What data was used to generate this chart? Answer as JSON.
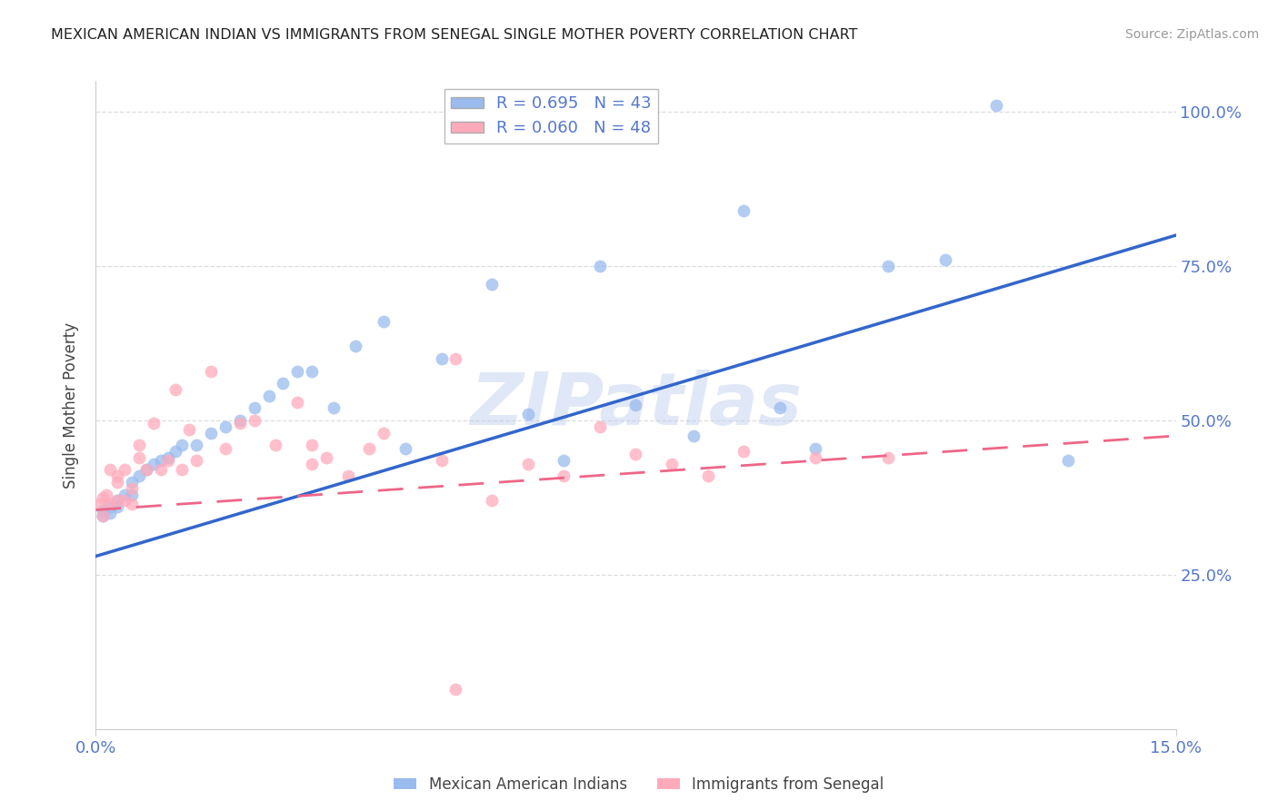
{
  "title": "MEXICAN AMERICAN INDIAN VS IMMIGRANTS FROM SENEGAL SINGLE MOTHER POVERTY CORRELATION CHART",
  "source": "Source: ZipAtlas.com",
  "ylabel_label": "Single Mother Poverty",
  "legend_label1": "Mexican American Indians",
  "legend_label2": "Immigrants from Senegal",
  "R1": 0.695,
  "N1": 43,
  "R2": 0.06,
  "N2": 48,
  "color_blue": "#99BBEE",
  "color_pink": "#FFAABB",
  "color_blue_line": "#3366CC",
  "color_pink_line": "#EE6688",
  "color_axis_text": "#5577CC",
  "color_grid": "#DDDDDD",
  "watermark": "ZIPatlas",
  "watermark_color": "#BBCCEE",
  "xmin": 0.0,
  "xmax": 0.15,
  "ymin": 0.0,
  "ymax": 1.05,
  "yticks": [
    0.25,
    0.5,
    0.75,
    1.0
  ],
  "ytick_labels": [
    "25.0%",
    "50.0%",
    "75.0%",
    "100.0%"
  ],
  "xtick_labels": [
    "0.0%",
    "15.0%"
  ],
  "blue_line_x0": 0.0,
  "blue_line_y0": 0.28,
  "blue_line_x1": 0.15,
  "blue_line_y1": 0.8,
  "pink_line_x0": 0.0,
  "pink_line_y0": 0.355,
  "pink_line_x1": 0.15,
  "pink_line_y1": 0.475,
  "blue_x": [
    0.001,
    0.001,
    0.002,
    0.002,
    0.003,
    0.003,
    0.004,
    0.005,
    0.005,
    0.006,
    0.007,
    0.008,
    0.009,
    0.01,
    0.011,
    0.012,
    0.014,
    0.016,
    0.018,
    0.02,
    0.022,
    0.024,
    0.026,
    0.028,
    0.03,
    0.033,
    0.036,
    0.04,
    0.043,
    0.048,
    0.055,
    0.06,
    0.065,
    0.07,
    0.075,
    0.083,
    0.09,
    0.095,
    0.1,
    0.11,
    0.118,
    0.125,
    0.135
  ],
  "blue_y": [
    0.345,
    0.355,
    0.35,
    0.36,
    0.36,
    0.37,
    0.38,
    0.38,
    0.4,
    0.41,
    0.42,
    0.43,
    0.435,
    0.44,
    0.45,
    0.46,
    0.46,
    0.48,
    0.49,
    0.5,
    0.52,
    0.54,
    0.56,
    0.58,
    0.58,
    0.52,
    0.62,
    0.66,
    0.455,
    0.6,
    0.72,
    0.51,
    0.435,
    0.75,
    0.525,
    0.475,
    0.84,
    0.52,
    0.455,
    0.75,
    0.76,
    1.01,
    0.435
  ],
  "pink_x": [
    0.0005,
    0.001,
    0.001,
    0.0015,
    0.002,
    0.002,
    0.003,
    0.003,
    0.003,
    0.004,
    0.004,
    0.005,
    0.005,
    0.006,
    0.006,
    0.007,
    0.008,
    0.009,
    0.01,
    0.011,
    0.012,
    0.013,
    0.014,
    0.016,
    0.018,
    0.02,
    0.022,
    0.025,
    0.028,
    0.03,
    0.032,
    0.035,
    0.038,
    0.04,
    0.048,
    0.05,
    0.055,
    0.06,
    0.065,
    0.07,
    0.075,
    0.08,
    0.085,
    0.09,
    0.1,
    0.11,
    0.05,
    0.03
  ],
  "pink_y": [
    0.365,
    0.345,
    0.375,
    0.38,
    0.365,
    0.42,
    0.37,
    0.4,
    0.41,
    0.37,
    0.42,
    0.365,
    0.39,
    0.44,
    0.46,
    0.42,
    0.495,
    0.42,
    0.435,
    0.55,
    0.42,
    0.485,
    0.435,
    0.58,
    0.455,
    0.495,
    0.5,
    0.46,
    0.53,
    0.43,
    0.44,
    0.41,
    0.455,
    0.48,
    0.435,
    0.6,
    0.37,
    0.43,
    0.41,
    0.49,
    0.445,
    0.43,
    0.41,
    0.45,
    0.44,
    0.44,
    0.065,
    0.46
  ]
}
